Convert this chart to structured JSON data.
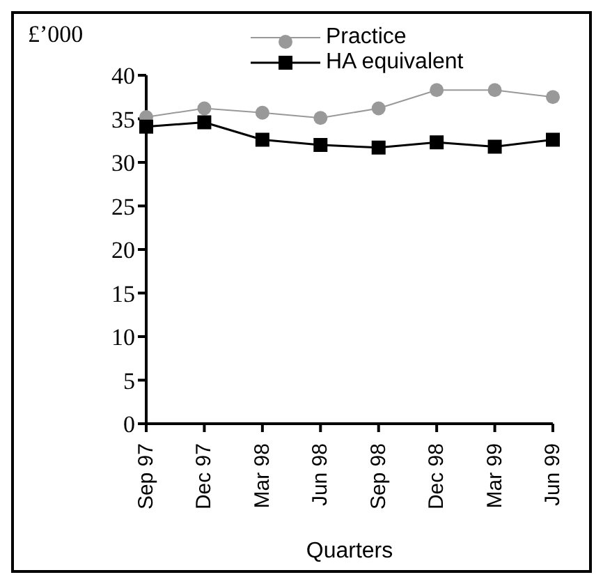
{
  "chart_data": {
    "type": "line",
    "ylabel": "£’000",
    "xlabel": "Quarters",
    "categories": [
      "Sep 97",
      "Dec 97",
      "Mar 98",
      "Jun 98",
      "Sep 98",
      "Dec 98",
      "Mar 99",
      "Jun 99"
    ],
    "series": [
      {
        "name": "Practice",
        "color": "#999999",
        "marker": "circle",
        "values": [
          35.2,
          36.2,
          35.7,
          35.1,
          36.2,
          38.3,
          38.3,
          37.5
        ]
      },
      {
        "name": "HA equivalent",
        "color": "#000000",
        "marker": "square",
        "values": [
          34.1,
          34.6,
          32.6,
          32.0,
          31.7,
          32.3,
          31.8,
          32.6
        ]
      }
    ],
    "ylim": [
      0,
      40
    ],
    "yticks": [
      0,
      5,
      10,
      15,
      20,
      25,
      30,
      35,
      40
    ],
    "grid": false,
    "legend": "top right"
  }
}
